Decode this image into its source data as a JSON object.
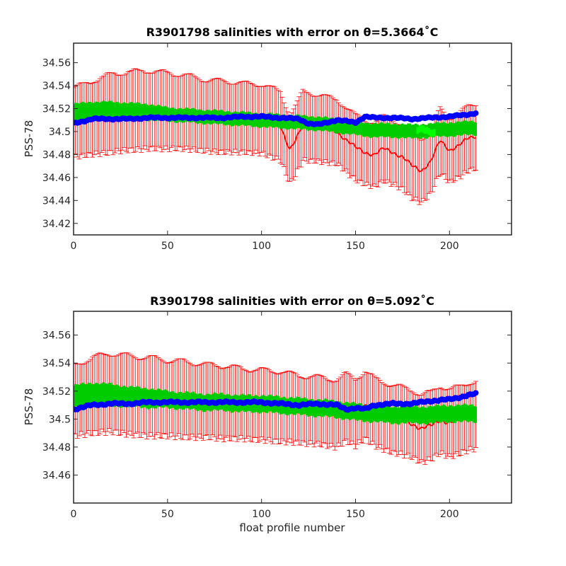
{
  "chart_data": [
    {
      "type": "line",
      "title": "R3901798 salinities with error on θ=5.3664˚C",
      "xlabel": "",
      "ylabel": "PSS-78",
      "xlim": [
        0,
        233
      ],
      "ylim": [
        34.41,
        34.577
      ],
      "x_ticks": [
        0,
        50,
        100,
        150,
        200
      ],
      "x_tick_labels": [
        "0",
        "50",
        "100",
        "150",
        "200"
      ],
      "y_ticks": [
        34.42,
        34.44,
        34.46,
        34.48,
        34.5,
        34.52,
        34.54,
        34.56
      ],
      "y_tick_labels": [
        "34.42",
        "34.44",
        "34.46",
        "34.48",
        "34.5",
        "34.52",
        "34.54",
        "34.56"
      ],
      "grid": false,
      "colors": {
        "uncalibrated": "#ff0000",
        "calibrated": "#00cc00",
        "highlight": "#00ff00",
        "mapped": "#0000ff"
      },
      "profile_count": 214,
      "series": [
        {
          "key": "uncalibrated",
          "style": "line-errorbar",
          "x": [
            0,
            10,
            20,
            30,
            40,
            50,
            60,
            70,
            80,
            90,
            100,
            105,
            110,
            115,
            118,
            122,
            130,
            140,
            150,
            155,
            160,
            165,
            170,
            175,
            180,
            185,
            190,
            195,
            200,
            205,
            210,
            214
          ],
          "values": [
            34.508,
            34.512,
            34.516,
            34.518,
            34.519,
            34.518,
            34.517,
            34.514,
            34.513,
            34.512,
            34.511,
            34.508,
            34.505,
            34.485,
            34.492,
            34.505,
            34.503,
            34.5,
            34.486,
            34.482,
            34.48,
            34.485,
            34.482,
            34.478,
            34.47,
            34.466,
            34.474,
            34.492,
            34.484,
            34.488,
            34.494,
            34.496
          ],
          "error_half_width": [
            0.03,
            0.032,
            0.034,
            0.034,
            0.034,
            0.033,
            0.032,
            0.031,
            0.031,
            0.03,
            0.03,
            0.03,
            0.03,
            0.03,
            0.03,
            0.03,
            0.029,
            0.028,
            0.028,
            0.028,
            0.028,
            0.028,
            0.028,
            0.028,
            0.028,
            0.028,
            0.028,
            0.028,
            0.028,
            0.028,
            0.028,
            0.028
          ]
        },
        {
          "key": "calibrated",
          "style": "band",
          "x": [
            0,
            10,
            20,
            30,
            40,
            50,
            60,
            70,
            80,
            90,
            100,
            110,
            120,
            130,
            140,
            150,
            160,
            170,
            180,
            190,
            200,
            210,
            214
          ],
          "values": [
            34.516,
            34.518,
            34.518,
            34.518,
            34.517,
            34.515,
            34.514,
            34.513,
            34.512,
            34.511,
            34.51,
            34.509,
            34.508,
            34.507,
            34.505,
            34.503,
            34.501,
            34.501,
            34.5,
            34.501,
            34.502,
            34.503,
            34.503
          ],
          "error_half_width": [
            0.008,
            0.008,
            0.008,
            0.007,
            0.007,
            0.006,
            0.006,
            0.006,
            0.006,
            0.006,
            0.006,
            0.006,
            0.006,
            0.006,
            0.006,
            0.006,
            0.006,
            0.006,
            0.006,
            0.006,
            0.006,
            0.006,
            0.006
          ]
        },
        {
          "key": "mapped",
          "style": "markers",
          "x": [
            0,
            10,
            20,
            30,
            40,
            50,
            60,
            70,
            80,
            90,
            100,
            110,
            120,
            125,
            130,
            140,
            150,
            155,
            160,
            170,
            180,
            190,
            200,
            210,
            214
          ],
          "values": [
            34.507,
            34.511,
            34.511,
            34.511,
            34.512,
            34.512,
            34.512,
            34.512,
            34.512,
            34.513,
            34.513,
            34.512,
            34.511,
            34.507,
            34.506,
            34.51,
            34.508,
            34.513,
            34.512,
            34.512,
            34.511,
            34.512,
            34.513,
            34.515,
            34.516
          ]
        },
        {
          "key": "highlight",
          "style": "band",
          "x": [
            183,
            186,
            189,
            192
          ],
          "values": [
            34.501,
            34.502,
            34.5,
            34.499
          ],
          "error_half_width": [
            0.003,
            0.003,
            0.003,
            0.003
          ]
        }
      ]
    },
    {
      "type": "line",
      "title": "R3901798 salinities with error on θ=5.092˚C",
      "xlabel": "float profile number",
      "ylabel": "PSS-78",
      "xlim": [
        0,
        233
      ],
      "ylim": [
        34.44,
        34.577
      ],
      "x_ticks": [
        0,
        50,
        100,
        150,
        200
      ],
      "x_tick_labels": [
        "0",
        "50",
        "100",
        "150",
        "200"
      ],
      "y_ticks": [
        34.46,
        34.48,
        34.5,
        34.52,
        34.54,
        34.56
      ],
      "y_tick_labels": [
        "34.46",
        "34.48",
        "34.5",
        "34.52",
        "34.54",
        "34.56"
      ],
      "grid": false,
      "colors": {
        "uncalibrated": "#ff0000",
        "calibrated": "#00cc00",
        "mapped": "#0000ff"
      },
      "profile_count": 214,
      "series": [
        {
          "key": "uncalibrated",
          "style": "line-errorbar",
          "x": [
            0,
            10,
            20,
            30,
            40,
            50,
            60,
            70,
            80,
            90,
            100,
            110,
            120,
            130,
            140,
            145,
            150,
            155,
            160,
            170,
            180,
            185,
            190,
            195,
            200,
            205,
            210,
            214
          ],
          "values": [
            34.513,
            34.517,
            34.519,
            34.517,
            34.516,
            34.515,
            34.514,
            34.513,
            34.512,
            34.511,
            34.51,
            34.509,
            34.507,
            34.506,
            34.504,
            34.508,
            34.505,
            34.51,
            34.505,
            34.5,
            34.497,
            34.493,
            34.495,
            34.5,
            34.497,
            34.499,
            34.502,
            34.503
          ],
          "error_half_width": [
            0.025,
            0.027,
            0.028,
            0.028,
            0.028,
            0.027,
            0.027,
            0.026,
            0.026,
            0.025,
            0.025,
            0.025,
            0.024,
            0.024,
            0.024,
            0.024,
            0.024,
            0.024,
            0.024,
            0.024,
            0.024,
            0.024,
            0.024,
            0.024,
            0.024,
            0.024,
            0.024,
            0.024
          ]
        },
        {
          "key": "calibrated",
          "style": "band",
          "x": [
            0,
            10,
            20,
            30,
            40,
            50,
            60,
            70,
            80,
            90,
            100,
            110,
            120,
            130,
            140,
            150,
            160,
            170,
            180,
            190,
            200,
            210,
            214
          ],
          "values": [
            34.516,
            34.518,
            34.517,
            34.516,
            34.515,
            34.514,
            34.513,
            34.512,
            34.512,
            34.511,
            34.511,
            34.51,
            34.509,
            34.508,
            34.507,
            34.505,
            34.504,
            34.503,
            34.503,
            34.503,
            34.504,
            34.504,
            34.504
          ],
          "error_half_width": [
            0.008,
            0.008,
            0.008,
            0.007,
            0.007,
            0.006,
            0.006,
            0.006,
            0.006,
            0.006,
            0.006,
            0.006,
            0.006,
            0.006,
            0.006,
            0.006,
            0.006,
            0.006,
            0.006,
            0.006,
            0.006,
            0.006,
            0.006
          ]
        },
        {
          "key": "mapped",
          "style": "markers",
          "x": [
            0,
            10,
            20,
            30,
            40,
            50,
            60,
            70,
            80,
            90,
            100,
            110,
            120,
            130,
            140,
            145,
            150,
            155,
            160,
            170,
            180,
            190,
            200,
            210,
            214
          ],
          "values": [
            34.507,
            34.51,
            34.511,
            34.511,
            34.512,
            34.512,
            34.512,
            34.512,
            34.512,
            34.512,
            34.512,
            34.511,
            34.51,
            34.511,
            34.51,
            34.507,
            34.508,
            34.507,
            34.51,
            34.511,
            34.511,
            34.513,
            34.514,
            34.517,
            34.518
          ]
        }
      ]
    }
  ]
}
